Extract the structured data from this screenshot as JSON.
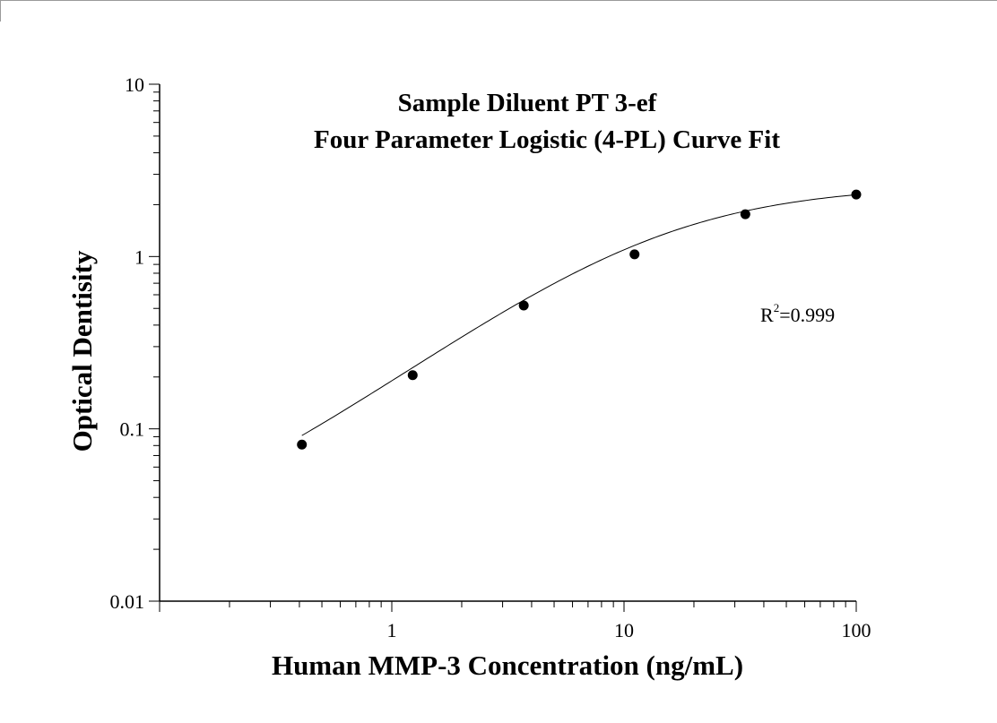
{
  "chart_data": {
    "type": "scatter",
    "title": "Sample Diluent PT 3-ef",
    "subtitle": "Four Parameter Logistic (4-PL) Curve Fit",
    "xlabel": "Human MMP-3 Concentration (ng/mL)",
    "ylabel": "Optical Dentisity",
    "xscale": "log",
    "yscale": "log",
    "xlim": [
      0.1,
      100
    ],
    "ylim": [
      0.01,
      10
    ],
    "x_ticks": [
      {
        "value": 1,
        "label": "1"
      },
      {
        "value": 10,
        "label": "10"
      },
      {
        "value": 100,
        "label": "100"
      }
    ],
    "y_ticks": [
      {
        "value": 0.01,
        "label": "0.01"
      },
      {
        "value": 0.1,
        "label": "0.1"
      },
      {
        "value": 1,
        "label": "1"
      },
      {
        "value": 10,
        "label": "10"
      }
    ],
    "grid": false,
    "legend": "none",
    "point_color": "#000000",
    "curve_color": "#000000",
    "series": [
      {
        "x": [
          0.41,
          1.23,
          3.7,
          11.1,
          33.3,
          100
        ],
        "y": [
          0.081,
          0.205,
          0.52,
          1.03,
          1.76,
          2.29
        ]
      }
    ],
    "fit": {
      "model": "4PL",
      "a": 0.018,
      "d": 2.6,
      "c": 14,
      "b": 1.0
    },
    "annotation": {
      "base": "R",
      "sup": "2",
      "rest": "=0.999"
    }
  }
}
